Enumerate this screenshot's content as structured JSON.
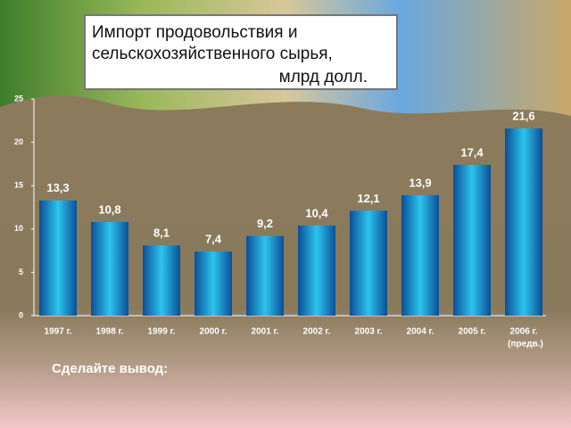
{
  "chart_data": {
    "type": "bar",
    "title": [
      "Импорт продовольствия и",
      "сельскохозяйственного сырья,",
      "млрд долл."
    ],
    "categories": [
      "1997 г.",
      "1998 г.",
      "1999 г.",
      "2000 г.",
      "2001 г.",
      "2002 г.",
      "2003 г.",
      "2004 г.",
      "2005 г.",
      "2006 г."
    ],
    "annotation": "(предв.)",
    "values": [
      13.3,
      10.8,
      8.1,
      7.4,
      9.2,
      10.4,
      12.1,
      13.9,
      17.4,
      21.6
    ],
    "value_labels": [
      "13,3",
      "10,8",
      "8,1",
      "7,4",
      "9,2",
      "10,4",
      "12,1",
      "13,9",
      "17,4",
      "21,6"
    ],
    "color": "#2cc4ee",
    "ylim": [
      0,
      25
    ],
    "yticks": [
      0,
      5,
      10,
      15,
      20,
      25
    ]
  },
  "prompt": "Сделайте вывод:"
}
